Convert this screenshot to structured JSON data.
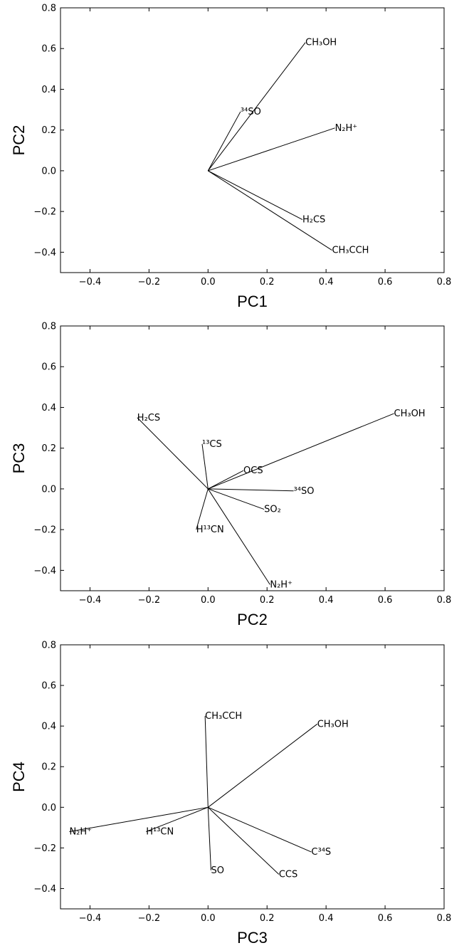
{
  "chart_data": [
    {
      "type": "line",
      "xlabel": "PC1",
      "ylabel": "PC2",
      "xlim": [
        -0.5,
        0.8
      ],
      "ylim": [
        -0.5,
        0.8
      ],
      "xticks": [
        "−0.4",
        "−0.2",
        "0.0",
        "0.2",
        "0.4",
        "0.6",
        "0.8"
      ],
      "yticks": [
        "−0.4",
        "−0.2",
        "0.0",
        "0.2",
        "0.4",
        "0.6",
        "0.8"
      ],
      "series": [
        {
          "name": "CH₃OH",
          "x": 0.33,
          "y": 0.63
        },
        {
          "name": "³⁴SO",
          "x": 0.11,
          "y": 0.29
        },
        {
          "name": "N₂H⁺",
          "x": 0.43,
          "y": 0.21
        },
        {
          "name": "H₂CS",
          "x": 0.32,
          "y": -0.24
        },
        {
          "name": "CH₃CCH",
          "x": 0.42,
          "y": -0.39
        }
      ]
    },
    {
      "type": "line",
      "xlabel": "PC2",
      "ylabel": "PC3",
      "xlim": [
        -0.5,
        0.8
      ],
      "ylim": [
        -0.5,
        0.8
      ],
      "xticks": [
        "−0.4",
        "−0.2",
        "0.0",
        "0.2",
        "0.4",
        "0.6",
        "0.8"
      ],
      "yticks": [
        "−0.4",
        "−0.2",
        "0.0",
        "0.2",
        "0.4",
        "0.6",
        "0.8"
      ],
      "series": [
        {
          "name": "H₂CS",
          "x": -0.24,
          "y": 0.35
        },
        {
          "name": "CH₃OH",
          "x": 0.63,
          "y": 0.37
        },
        {
          "name": "¹³CS",
          "x": -0.02,
          "y": 0.22
        },
        {
          "name": "OCS",
          "x": 0.12,
          "y": 0.09
        },
        {
          "name": "³⁴SO",
          "x": 0.29,
          "y": -0.01
        },
        {
          "name": "SO₂",
          "x": 0.19,
          "y": -0.1
        },
        {
          "name": "H¹³CN",
          "x": -0.04,
          "y": -0.2
        },
        {
          "name": "N₂H⁺",
          "x": 0.21,
          "y": -0.47
        }
      ]
    },
    {
      "type": "line",
      "xlabel": "PC3",
      "ylabel": "PC4",
      "xlim": [
        -0.5,
        0.8
      ],
      "ylim": [
        -0.5,
        0.8
      ],
      "xticks": [
        "−0.4",
        "−0.2",
        "0.0",
        "0.2",
        "0.4",
        "0.6",
        "0.8"
      ],
      "yticks": [
        "−0.4",
        "−0.2",
        "0.0",
        "0.2",
        "0.4",
        "0.6",
        "0.8"
      ],
      "series": [
        {
          "name": "CH₃CCH",
          "x": -0.01,
          "y": 0.45
        },
        {
          "name": "CH₃OH",
          "x": 0.37,
          "y": 0.41
        },
        {
          "name": "N₂H⁺",
          "x": -0.47,
          "y": -0.12
        },
        {
          "name": "H¹³CN",
          "x": -0.21,
          "y": -0.12
        },
        {
          "name": "C³⁴S",
          "x": 0.35,
          "y": -0.22
        },
        {
          "name": "SO",
          "x": 0.01,
          "y": -0.31
        },
        {
          "name": "CCS",
          "x": 0.24,
          "y": -0.33
        }
      ]
    }
  ]
}
